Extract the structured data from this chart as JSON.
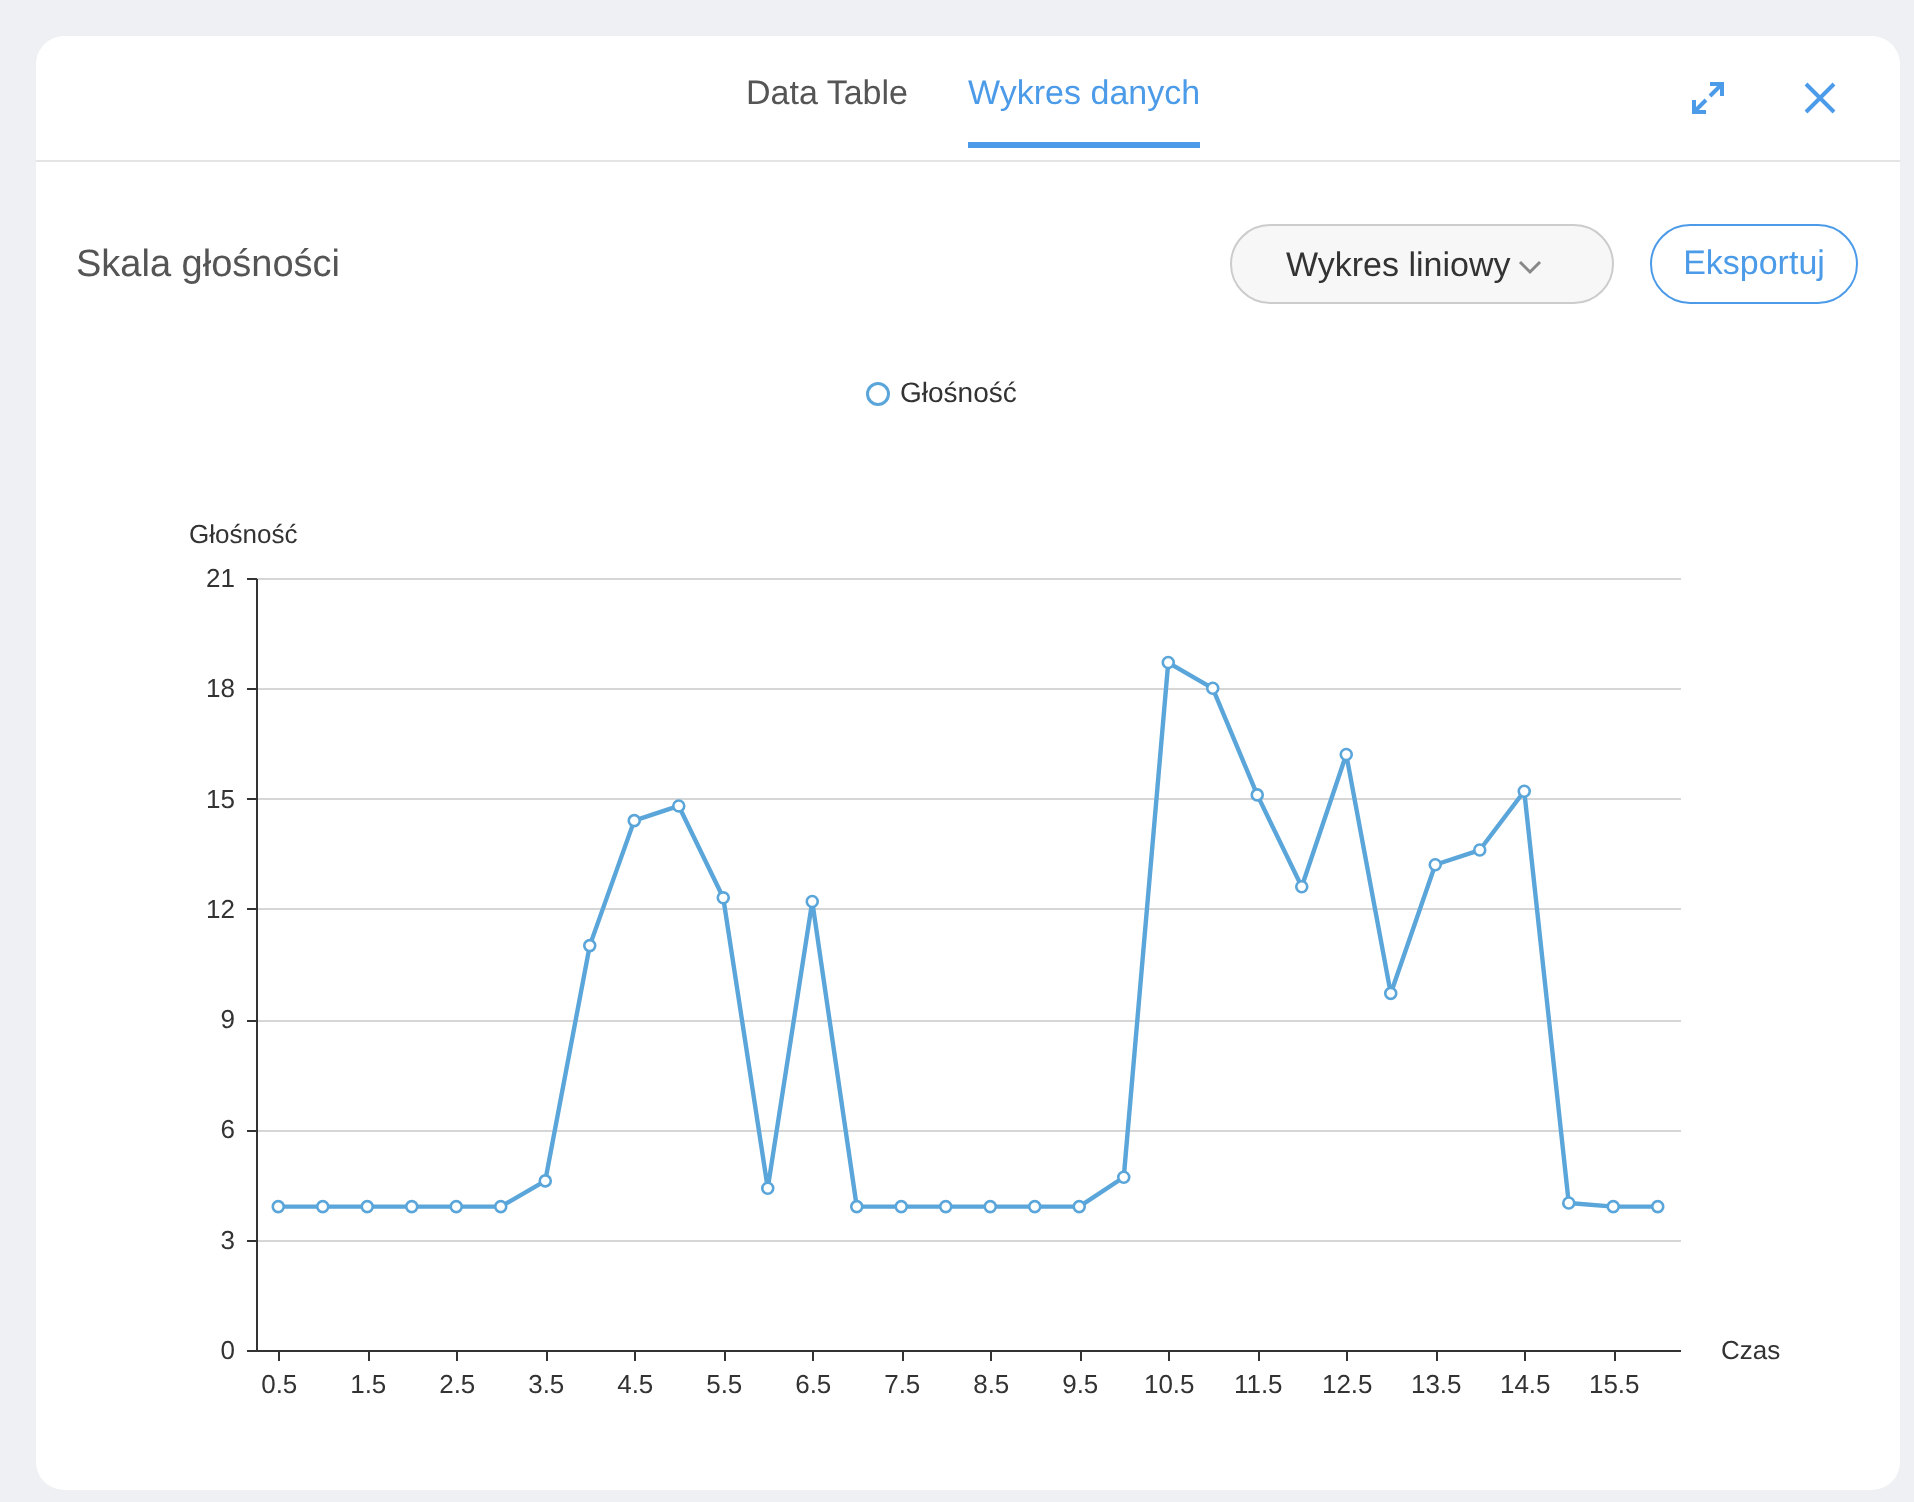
{
  "chart_data": {
    "type": "line",
    "title": "Skala głośności",
    "xlabel": "Czas",
    "ylabel": "Głośność",
    "annotations": [
      "Data Table",
      "Wykres danych",
      "Wykres liniowy",
      "Eksportuj"
    ],
    "x": [
      0.5,
      1,
      1.5,
      2,
      2.5,
      3,
      3.5,
      4,
      4.5,
      5,
      5.5,
      6,
      6.5,
      7,
      7.5,
      8,
      8.5,
      9,
      9.5,
      10,
      10.5,
      11,
      11.5,
      12,
      12.5,
      13,
      13.5,
      14,
      14.5,
      15,
      15.5,
      16
    ],
    "series": [
      {
        "name": "Głośność",
        "color": "#5aa5d9",
        "values": [
          3.9,
          3.9,
          3.9,
          3.9,
          3.9,
          3.9,
          4.6,
          11,
          14.4,
          14.8,
          12.3,
          4.4,
          12.2,
          3.9,
          3.9,
          3.9,
          3.9,
          3.9,
          3.9,
          4.7,
          18.7,
          18,
          15.1,
          12.6,
          16.2,
          9.7,
          13.2,
          13.6,
          15.2,
          4,
          3.9,
          3.9
        ]
      }
    ],
    "xlim": [
      0.25,
      16.25
    ],
    "xticks": [
      0.5,
      1.5,
      2.5,
      3.5,
      4.5,
      5.5,
      6.5,
      7.5,
      8.5,
      9.5,
      10.5,
      11.5,
      12.5,
      13.5,
      14.5,
      15.5
    ],
    "ylim": [
      0,
      21
    ],
    "yticks": [
      0,
      3,
      6,
      9,
      12,
      15,
      18,
      21
    ],
    "grid": "y",
    "legend": "top",
    "marker": "circle",
    "line_style": "solid"
  }
}
